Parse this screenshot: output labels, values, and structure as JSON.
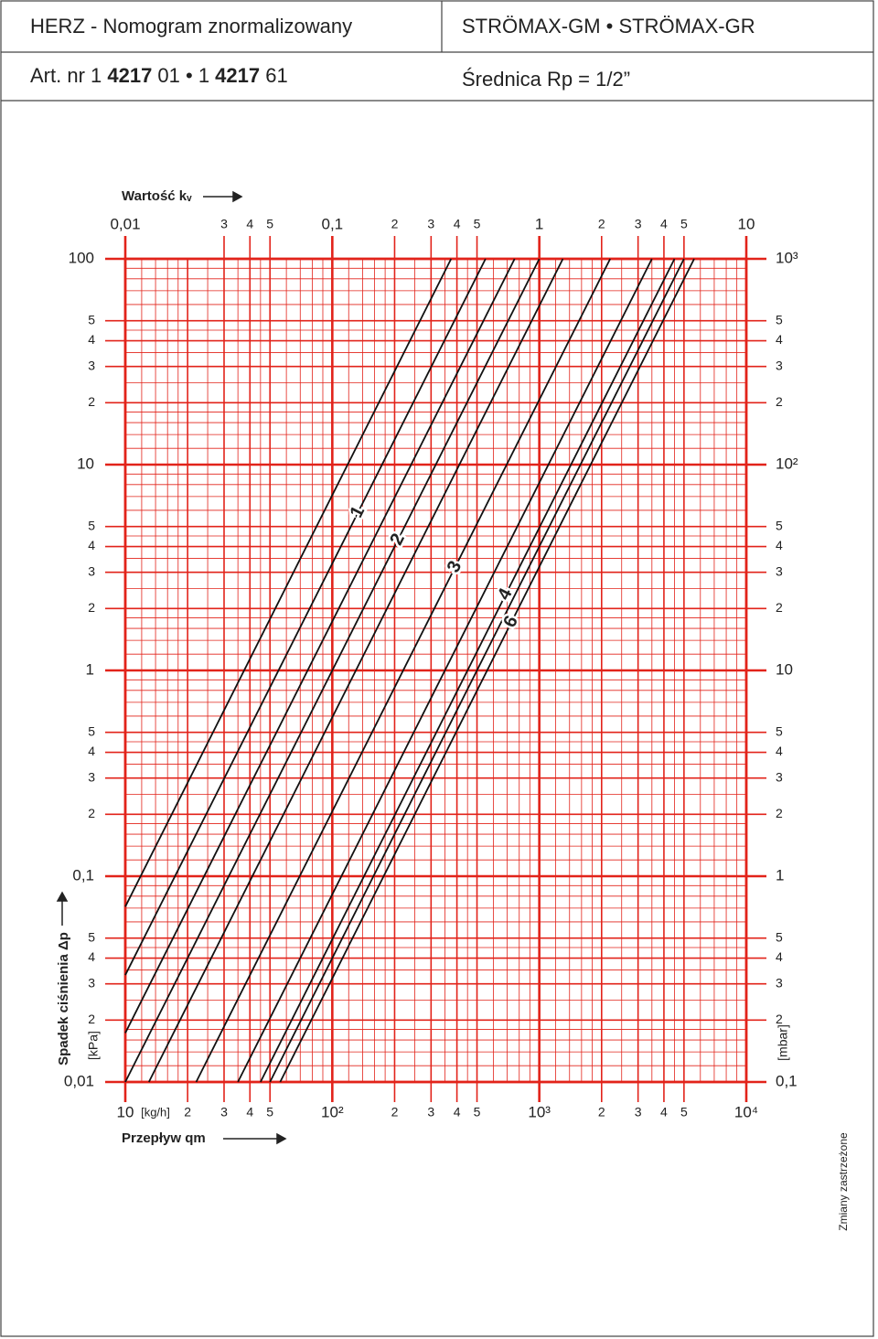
{
  "header": {
    "title": "HERZ - Nomogram znormalizowany",
    "product": "STRÖMAX-GM • STRÖMAX-GR",
    "article": [
      {
        "text": "Art. nr 1 "
      },
      {
        "text": "4217",
        "bold": true
      },
      {
        "text": " 01 • 1 "
      },
      {
        "text": "4217",
        "bold": true
      },
      {
        "text": " 61"
      }
    ],
    "diameter": "Średnica Rp = 1/2”"
  },
  "footer": {
    "note": "Zmiany zastrzeżone"
  },
  "chart_data": {
    "type": "line",
    "xscale": "log",
    "yscale": "log",
    "grid": true,
    "grid_color": "#e2231a",
    "x_label": "Przepływ qm",
    "x_unit": "[kg/h]",
    "x2_label": "Wartość kᵥ",
    "y_label": "Spadek ciśnienia Δp",
    "y_unit": "[kPa]",
    "y2_unit": "[mbar]",
    "xlim": [
      10,
      10000
    ],
    "x2lim": [
      0.01,
      10
    ],
    "ylim": [
      0.01,
      100
    ],
    "y2lim": [
      0.1,
      1000
    ],
    "xticks": [
      10,
      {
        "value": 20,
        "label": "2"
      },
      {
        "value": 30,
        "label": "3"
      },
      {
        "value": 40,
        "label": "4"
      },
      {
        "value": 50,
        "label": "5"
      },
      {
        "value": 100,
        "label": "10²"
      },
      {
        "value": 200,
        "label": "2"
      },
      {
        "value": 300,
        "label": "3"
      },
      {
        "value": 400,
        "label": "4"
      },
      {
        "value": 500,
        "label": "5"
      },
      {
        "value": 1000,
        "label": "10³"
      },
      {
        "value": 2000,
        "label": "2"
      },
      {
        "value": 3000,
        "label": "3"
      },
      {
        "value": 4000,
        "label": "4"
      },
      {
        "value": 5000,
        "label": "5"
      },
      {
        "value": 10000,
        "label": "10⁴"
      }
    ],
    "x2ticks": [
      {
        "value": 0.01,
        "label": "0,01"
      },
      {
        "value": 0.03,
        "label": "3"
      },
      {
        "value": 0.04,
        "label": "4"
      },
      {
        "value": 0.05,
        "label": "5"
      },
      {
        "value": 0.1,
        "label": "0,1"
      },
      {
        "value": 0.2,
        "label": "2"
      },
      {
        "value": 0.3,
        "label": "3"
      },
      {
        "value": 0.4,
        "label": "4"
      },
      {
        "value": 0.5,
        "label": "5"
      },
      1,
      2,
      3,
      4,
      5,
      10
    ],
    "yticks": [
      100,
      {
        "value": 50,
        "label": "5"
      },
      {
        "value": 40,
        "label": "4"
      },
      {
        "value": 30,
        "label": "3"
      },
      {
        "value": 20,
        "label": "2"
      },
      10,
      5,
      4,
      3,
      2,
      1,
      {
        "value": 0.5,
        "label": "5"
      },
      {
        "value": 0.4,
        "label": "4"
      },
      {
        "value": 0.3,
        "label": "3"
      },
      {
        "value": 0.2,
        "label": "2"
      },
      {
        "value": 0.1,
        "label": "0,1"
      },
      {
        "value": 0.05,
        "label": "5"
      },
      {
        "value": 0.04,
        "label": "4"
      },
      {
        "value": 0.03,
        "label": "3"
      },
      {
        "value": 0.02,
        "label": "2"
      },
      {
        "value": 0.01,
        "label": "0,01"
      }
    ],
    "y2ticks": [
      {
        "value": 1000,
        "label": "10³"
      },
      {
        "value": 500,
        "label": "5"
      },
      {
        "value": 400,
        "label": "4"
      },
      {
        "value": 300,
        "label": "3"
      },
      {
        "value": 200,
        "label": "2"
      },
      {
        "value": 100,
        "label": "10²"
      },
      {
        "value": 50,
        "label": "5"
      },
      {
        "value": 40,
        "label": "4"
      },
      {
        "value": 30,
        "label": "3"
      },
      {
        "value": 20,
        "label": "2"
      },
      10,
      5,
      4,
      3,
      2,
      1,
      {
        "value": 0.5,
        "label": "5"
      },
      {
        "value": 0.4,
        "label": "4"
      },
      {
        "value": 0.3,
        "label": "3"
      },
      {
        "value": 0.2,
        "label": "2"
      },
      {
        "value": 0.1,
        "label": "0,1"
      }
    ],
    "series": [
      {
        "color": "#111111",
        "x": [
          10,
          375
        ],
        "values": [
          0.0711,
          100
        ]
      },
      {
        "name": "1",
        "color": "#111111",
        "x": [
          10,
          550
        ],
        "values": [
          0.0331,
          100
        ]
      },
      {
        "color": "#111111",
        "x": [
          10,
          760
        ],
        "values": [
          0.0173,
          100
        ]
      },
      {
        "name": "2",
        "color": "#111111",
        "x": [
          10,
          1000
        ],
        "values": [
          0.01,
          100
        ]
      },
      {
        "color": "#111111",
        "x": [
          13,
          1300
        ],
        "values": [
          0.01,
          100
        ]
      },
      {
        "name": "3",
        "color": "#111111",
        "x": [
          22,
          2200
        ],
        "values": [
          0.01,
          100
        ]
      },
      {
        "color": "#111111",
        "x": [
          35,
          3500
        ],
        "values": [
          0.01,
          100
        ]
      },
      {
        "name": "4",
        "color": "#111111",
        "x": [
          45,
          4500
        ],
        "values": [
          0.01,
          100
        ]
      },
      {
        "color": "#111111",
        "x": [
          50,
          5000
        ],
        "values": [
          0.01,
          100
        ]
      },
      {
        "name": "6",
        "color": "#111111",
        "x": [
          56,
          5600
        ],
        "values": [
          0.01,
          100
        ]
      }
    ]
  }
}
